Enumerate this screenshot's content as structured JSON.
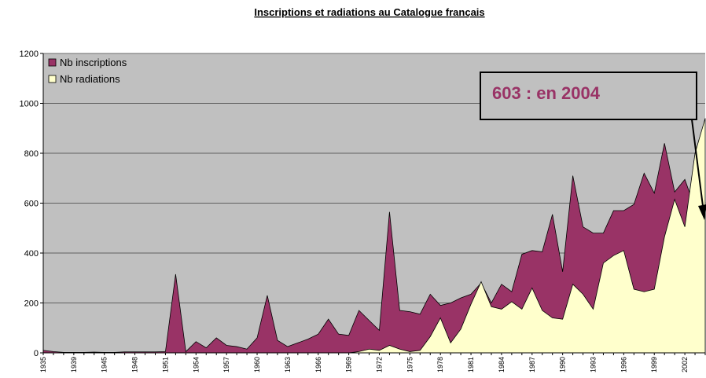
{
  "chart_data": {
    "type": "area",
    "title": "Inscriptions et radiations au Catalogue français",
    "annotation": "603 : en 2004",
    "categories": [
      "1935",
      null,
      null,
      "1939",
      null,
      null,
      "1945",
      null,
      null,
      "1948",
      null,
      null,
      "1951",
      null,
      null,
      "1954",
      null,
      null,
      "1957",
      null,
      null,
      "1960",
      null,
      null,
      "1963",
      null,
      null,
      "1966",
      null,
      null,
      "1969",
      null,
      null,
      "1972",
      null,
      null,
      "1975",
      null,
      null,
      "1978",
      null,
      null,
      "1981",
      null,
      null,
      "1984",
      null,
      null,
      "1987",
      null,
      null,
      "1990",
      null,
      null,
      "1993",
      null,
      null,
      "1996",
      null,
      null,
      "1999",
      null,
      null,
      "2002",
      null,
      null
    ],
    "series": [
      {
        "name": "Nb inscriptions",
        "color": "#993366",
        "values": [
          10,
          5,
          2,
          2,
          2,
          3,
          2,
          2,
          4,
          4,
          4,
          4,
          5,
          315,
          5,
          45,
          20,
          60,
          30,
          25,
          15,
          60,
          230,
          50,
          25,
          40,
          55,
          75,
          135,
          75,
          70,
          170,
          130,
          90,
          565,
          170,
          165,
          155,
          235,
          190,
          200,
          220,
          235,
          280,
          200,
          275,
          245,
          395,
          410,
          405,
          555,
          325,
          710,
          505,
          480,
          480,
          570,
          570,
          595,
          720,
          640,
          840,
          645,
          695,
          580,
          603
        ]
      },
      {
        "name": "Nb radiations",
        "color": "#ffffcc",
        "values": [
          0,
          0,
          0,
          0,
          0,
          0,
          0,
          0,
          0,
          0,
          0,
          0,
          0,
          0,
          0,
          0,
          0,
          0,
          0,
          0,
          0,
          0,
          0,
          0,
          0,
          0,
          0,
          0,
          0,
          0,
          0,
          5,
          15,
          10,
          30,
          15,
          5,
          10,
          65,
          140,
          40,
          95,
          195,
          285,
          185,
          175,
          205,
          175,
          260,
          170,
          140,
          135,
          275,
          235,
          175,
          360,
          390,
          410,
          255,
          245,
          255,
          465,
          615,
          505,
          800,
          940
        ]
      }
    ],
    "ylim": [
      0,
      1200
    ],
    "yticks": [
      0,
      200,
      400,
      600,
      800,
      1000,
      1200
    ],
    "grid": true
  }
}
